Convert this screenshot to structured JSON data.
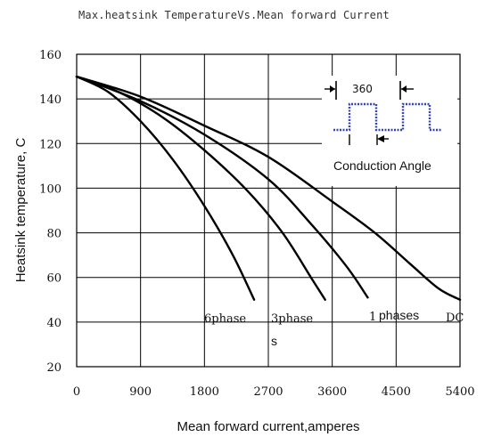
{
  "chart_data": {
    "type": "line",
    "title": "Max.heatsink TemperatureVs.Mean forward Current",
    "xlabel": "Mean forward current,amperes",
    "ylabel": "Heatsink temperature, C",
    "xlim": [
      0,
      5400
    ],
    "ylim": [
      20,
      160
    ],
    "xticks": [
      0,
      900,
      1800,
      2700,
      3600,
      4500,
      5400
    ],
    "yticks": [
      20,
      40,
      60,
      80,
      100,
      120,
      140,
      160
    ],
    "grid": true,
    "series": [
      {
        "name": "6phase",
        "points": [
          [
            0,
            150
          ],
          [
            450,
            143
          ],
          [
            900,
            130
          ],
          [
            1350,
            113
          ],
          [
            1800,
            92
          ],
          [
            2200,
            70
          ],
          [
            2500,
            50
          ]
        ]
      },
      {
        "name": "3phase s",
        "points": [
          [
            0,
            150
          ],
          [
            600,
            143
          ],
          [
            1200,
            132
          ],
          [
            1800,
            117
          ],
          [
            2400,
            99
          ],
          [
            2900,
            80
          ],
          [
            3300,
            60
          ],
          [
            3500,
            50
          ]
        ]
      },
      {
        "name": "1phases",
        "points": [
          [
            0,
            150
          ],
          [
            900,
            139
          ],
          [
            1800,
            124
          ],
          [
            2700,
            104
          ],
          [
            3300,
            84
          ],
          [
            3800,
            65
          ],
          [
            4100,
            51
          ]
        ]
      },
      {
        "name": "DC",
        "points": [
          [
            0,
            150
          ],
          [
            900,
            141
          ],
          [
            1800,
            128
          ],
          [
            2700,
            114
          ],
          [
            3600,
            94
          ],
          [
            4200,
            80
          ],
          [
            4700,
            66
          ],
          [
            5100,
            55
          ],
          [
            5400,
            50
          ]
        ]
      }
    ],
    "series_labels": {
      "six": "6phase",
      "three_main": "3phase",
      "three_suffix": "s",
      "one_num": "1",
      "one_word": "phases",
      "dc": "DC"
    },
    "inset": {
      "value": "360",
      "caption": "Conduction  Angle",
      "waveform_color": "#3344bb"
    }
  }
}
